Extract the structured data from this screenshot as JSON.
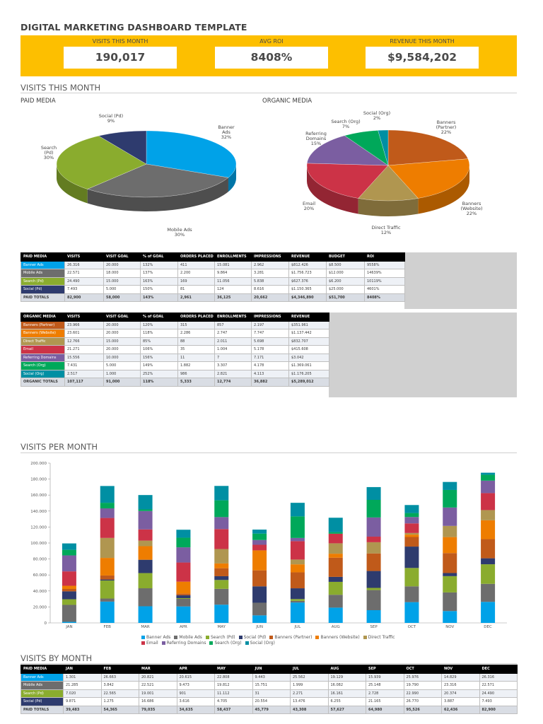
{
  "title": "DIGITAL MARKETING DASHBOARD TEMPLATE",
  "kpis": [
    {
      "label": "VISITS THIS MONTH",
      "value": "190,017"
    },
    {
      "label": "AVG ROI",
      "value": "8408%"
    },
    {
      "label": "REVENUE THIS MONTH",
      "value": "$9,584,202"
    }
  ],
  "sections": {
    "visits_this_month": "VISITS THIS MONTH",
    "paid_media": "PAID MEDIA",
    "organic_media": "ORGANIC MEDIA",
    "visits_per_month": "VISITS PER MONTH",
    "visits_by_month": "VISITS BY MONTH"
  },
  "colors": {
    "banner_ads": "#00a2e8",
    "mobile_ads": "#6d6d6d",
    "search_pd": "#8aac2e",
    "social_pd": "#2e3b6e",
    "banners_partner": "#c05a1a",
    "banners_website": "#ee7d00",
    "direct_traffic": "#b09650",
    "email": "#cc3347",
    "referring_domains": "#7b5ea1",
    "search_org": "#00a85a",
    "social_org": "#008fa3",
    "kpi_band": "#fdbf00"
  },
  "paid_table": {
    "headers": [
      "PAID MEDIA",
      "VISITS",
      "VISIT GOAL",
      "% of GOAL",
      "ORDERS PLACED",
      "ENROLLMENTS",
      "IMPRESSIONS",
      "REVENUE",
      "BUDGET",
      "ROI"
    ],
    "rows": [
      {
        "name": "Banner Ads",
        "color": "#00a2e8",
        "cells": [
          "26.316",
          "20.000",
          "132%",
          "411",
          "15.081",
          "2.962",
          "$812.426",
          "$8.500",
          "9558%"
        ]
      },
      {
        "name": "Mobile Ads",
        "color": "#6d6d6d",
        "cells": [
          "22.571",
          "18.000",
          "137%",
          "2.200",
          "9.864",
          "3.281",
          "$1.756.723",
          "$12.000",
          "14639%"
        ]
      },
      {
        "name": "Search (Pd)",
        "color": "#8aac2e",
        "cells": [
          "24.490",
          "15.000",
          "163%",
          "169",
          "11.056",
          "5.838",
          "$627.376",
          "$6.200",
          "10119%"
        ]
      },
      {
        "name": "Social (Pd)",
        "color": "#2e3b6e",
        "cells": [
          "7.493",
          "5.000",
          "150%",
          "81",
          "124",
          "8.616",
          "$1.150.365",
          "$25.000",
          "4601%"
        ]
      }
    ],
    "total": [
      "PAID TOTALS",
      "82,900",
      "58,000",
      "143%",
      "2,961",
      "36,125",
      "20,662",
      "$4,346,890",
      "$51,700",
      "8408%"
    ]
  },
  "organic_table": {
    "headers": [
      "ORGANIC MEDIA",
      "VISITS",
      "VISIT GOAL",
      "% of GOAL",
      "ORDERS PLACED",
      "ENROLLMENTS",
      "IMPRESSIONS",
      "REVENUE"
    ],
    "rows": [
      {
        "name": "Banners (Partner)",
        "color": "#c05a1a",
        "cells": [
          "23.966",
          "20.000",
          "120%",
          "315",
          "857",
          "2.197",
          "$351.961"
        ]
      },
      {
        "name": "Banners (Website)",
        "color": "#ee7d00",
        "cells": [
          "23.601",
          "20.000",
          "118%",
          "2.286",
          "2.747",
          "7.747",
          "$1.137.442"
        ]
      },
      {
        "name": "Direct Traffic",
        "color": "#b09650",
        "cells": [
          "12.766",
          "15.000",
          "85%",
          "88",
          "2.011",
          "5.698",
          "$832.707"
        ]
      },
      {
        "name": "Email",
        "color": "#cc3347",
        "cells": [
          "21.271",
          "20.000",
          "106%",
          "35",
          "1.004",
          "5.178",
          "$415.608"
        ]
      },
      {
        "name": "Referring Domains",
        "color": "#7b5ea1",
        "cells": [
          "15.556",
          "10.000",
          "156%",
          "11",
          "7",
          "7.171",
          "$3.042"
        ]
      },
      {
        "name": "Search (Org)",
        "color": "#00a85a",
        "cells": [
          "7.431",
          "5.000",
          "149%",
          "1.882",
          "3.307",
          "4.178",
          "$1.369.061"
        ]
      },
      {
        "name": "Social (Org)",
        "color": "#008fa3",
        "cells": [
          "2.517",
          "1.000",
          "252%",
          "986",
          "2.821",
          "4.113",
          "$1.176.205"
        ]
      }
    ],
    "total": [
      "ORGANIC TOTALS",
      "107,117",
      "91,000",
      "118%",
      "5,333",
      "12,774",
      "36,882",
      "$5,289,012"
    ]
  },
  "month_table": {
    "headers": [
      "PAID MEDIA",
      "JAN",
      "FEB",
      "MAR",
      "APR",
      "MAY",
      "JUN",
      "JUL",
      "AUG",
      "SEP",
      "OCT",
      "NOV",
      "DEC"
    ],
    "rows": [
      {
        "name": "Banner Ads",
        "color": "#00a2e8",
        "cells": [
          "1.301",
          "26.663",
          "20.821",
          "20.615",
          "22.808",
          "9.443",
          "25.562",
          "19.129",
          "15.939",
          "25.976",
          "14.829",
          "26.316"
        ]
      },
      {
        "name": "Mobile Ads",
        "color": "#6d6d6d",
        "cells": [
          "21.285",
          "3.842",
          "22.521",
          "9.473",
          "19.812",
          "15.751",
          "1.999",
          "16.082",
          "25.148",
          "19.790",
          "23.316",
          "22.571"
        ]
      },
      {
        "name": "Search (Pd)",
        "color": "#8aac2e",
        "cells": [
          "7.020",
          "22.565",
          "19.001",
          "901",
          "11.112",
          "31",
          "2.271",
          "16.161",
          "2.728",
          "22.990",
          "20.374",
          "24.490"
        ]
      },
      {
        "name": "Social (Pd)",
        "color": "#2e3b6e",
        "cells": [
          "9.871",
          "1.275",
          "16.686",
          "3.616",
          "4.705",
          "20.554",
          "13.476",
          "6.255",
          "21.165",
          "26.770",
          "3.887",
          "7.493"
        ]
      }
    ],
    "total": [
      "PAID TOTALS",
      "39,483",
      "54,365",
      "79,035",
      "34,635",
      "58,437",
      "45,779",
      "43,308",
      "57,627",
      "64,980",
      "95,526",
      "62,436",
      "82,900"
    ]
  },
  "chart_data": [
    {
      "type": "pie",
      "title": "PAID MEDIA",
      "categories": [
        "Banner Ads",
        "Mobile Ads",
        "Search (Pd)",
        "Social (Pd)"
      ],
      "values": [
        32,
        30,
        30,
        9
      ],
      "labels": [
        "Banner\nAds\n32%",
        "Mobile Ads\n30%",
        "Search\n(Pd)\n30%",
        "Social (Pd)\n9%"
      ]
    },
    {
      "type": "pie",
      "title": "ORGANIC MEDIA",
      "categories": [
        "Banners (Partner)",
        "Banners (Website)",
        "Direct Traffic",
        "Email",
        "Referring Domains",
        "Search (Org)",
        "Social (Org)"
      ],
      "values": [
        22,
        22,
        12,
        20,
        15,
        7,
        2
      ],
      "labels": [
        "Banners\n(Partner)\n22%",
        "Banners\n(Website)\n22%",
        "Direct Traffic\n12%",
        "Email\n20%",
        "Referring\nDomains\n15%",
        "Search (Org)\n7%",
        "Social (Org)\n2%"
      ]
    },
    {
      "type": "bar",
      "stacked": true,
      "title": "VISITS PER MONTH",
      "categories": [
        "JAN",
        "FEB",
        "MAR",
        "APR",
        "MAY",
        "JUN",
        "JUL",
        "AUG",
        "SEP",
        "OCT",
        "NOV",
        "DEC"
      ],
      "ylim": [
        0,
        200000
      ],
      "yticks": [
        "0",
        "20.000",
        "40.000",
        "60.000",
        "80.000",
        "100.000",
        "120.000",
        "140.000",
        "160.000",
        "180.000",
        "200.000"
      ],
      "legend": "bottom",
      "series": [
        {
          "name": "Banner Ads",
          "values": [
            1301,
            26663,
            20821,
            20615,
            22808,
            9443,
            25562,
            19129,
            15939,
            25976,
            14829,
            26316
          ]
        },
        {
          "name": "Mobile Ads",
          "values": [
            21285,
            3842,
            22521,
            9473,
            19812,
            15751,
            1999,
            16082,
            25148,
            19790,
            23316,
            22571
          ]
        },
        {
          "name": "Search (Pd)",
          "values": [
            7020,
            22565,
            19001,
            901,
            11112,
            31,
            2271,
            16161,
            2728,
            22990,
            20374,
            24490
          ]
        },
        {
          "name": "Social (Pd)",
          "values": [
            9871,
            1275,
            16686,
            3616,
            4705,
            20554,
            13476,
            6255,
            21165,
            26770,
            3887,
            7493
          ]
        },
        {
          "name": "Banners (Partner)",
          "values": [
            3000,
            5000,
            0,
            2000,
            10000,
            20000,
            20000,
            24000,
            22000,
            12000,
            25000,
            23966
          ]
        },
        {
          "name": "Banners (Website)",
          "values": [
            4000,
            22000,
            17000,
            15000,
            6000,
            25000,
            10000,
            5000,
            0,
            3000,
            20000,
            23601
          ]
        },
        {
          "name": "Direct Traffic",
          "values": [
            0,
            25000,
            7000,
            0,
            18000,
            0,
            6000,
            13000,
            14000,
            2000,
            14000,
            12766
          ]
        },
        {
          "name": "Email",
          "values": [
            18000,
            25000,
            14000,
            24000,
            25000,
            7000,
            23000,
            12000,
            7000,
            12000,
            0,
            21271
          ]
        },
        {
          "name": "Referring Domains",
          "values": [
            20000,
            12000,
            23000,
            19000,
            15000,
            6000,
            4000,
            0,
            24000,
            8000,
            23000,
            15556
          ]
        },
        {
          "name": "Search (Org)",
          "values": [
            7000,
            7000,
            2000,
            12000,
            21000,
            8000,
            27000,
            2000,
            22000,
            5000,
            22000,
            7431
          ]
        },
        {
          "name": "Social (Org)",
          "values": [
            8000,
            21000,
            18000,
            10000,
            18000,
            5000,
            17000,
            18000,
            16000,
            10000,
            10000,
            2517
          ]
        }
      ]
    }
  ]
}
